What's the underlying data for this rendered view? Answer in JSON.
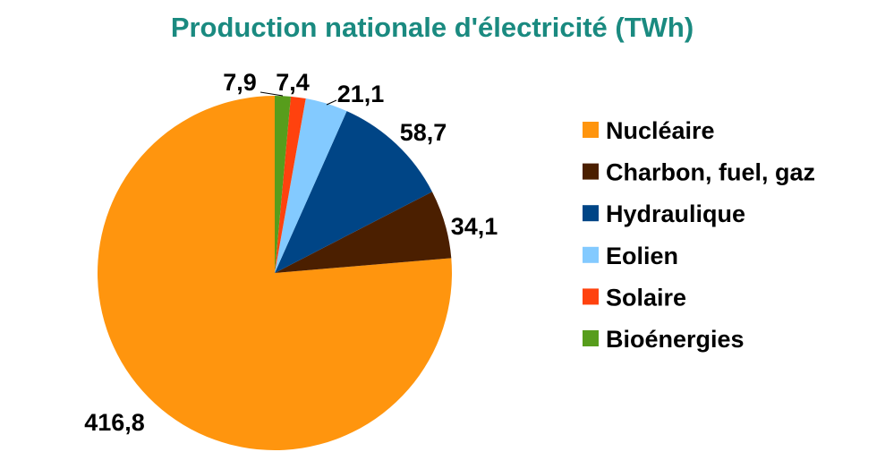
{
  "chart_data": {
    "type": "pie",
    "title": "Production nationale d'électricité (TWh)",
    "categories": [
      "Nucléaire",
      "Charbon, fuel, gaz",
      "Hydraulique",
      "Eolien",
      "Solaire",
      "Bioénergies"
    ],
    "values": [
      416.8,
      34.1,
      58.7,
      21.1,
      7.4,
      7.9
    ],
    "data_labels": [
      "416,8",
      "34,1",
      "58,7",
      "21,1",
      "7,4",
      "7,9"
    ],
    "colors": [
      "#ff950e",
      "#4b1f00",
      "#004586",
      "#83caff",
      "#ff420e",
      "#579d1c"
    ],
    "legend_position": "right",
    "start_angle": "top",
    "direction": "counterclockwise"
  }
}
